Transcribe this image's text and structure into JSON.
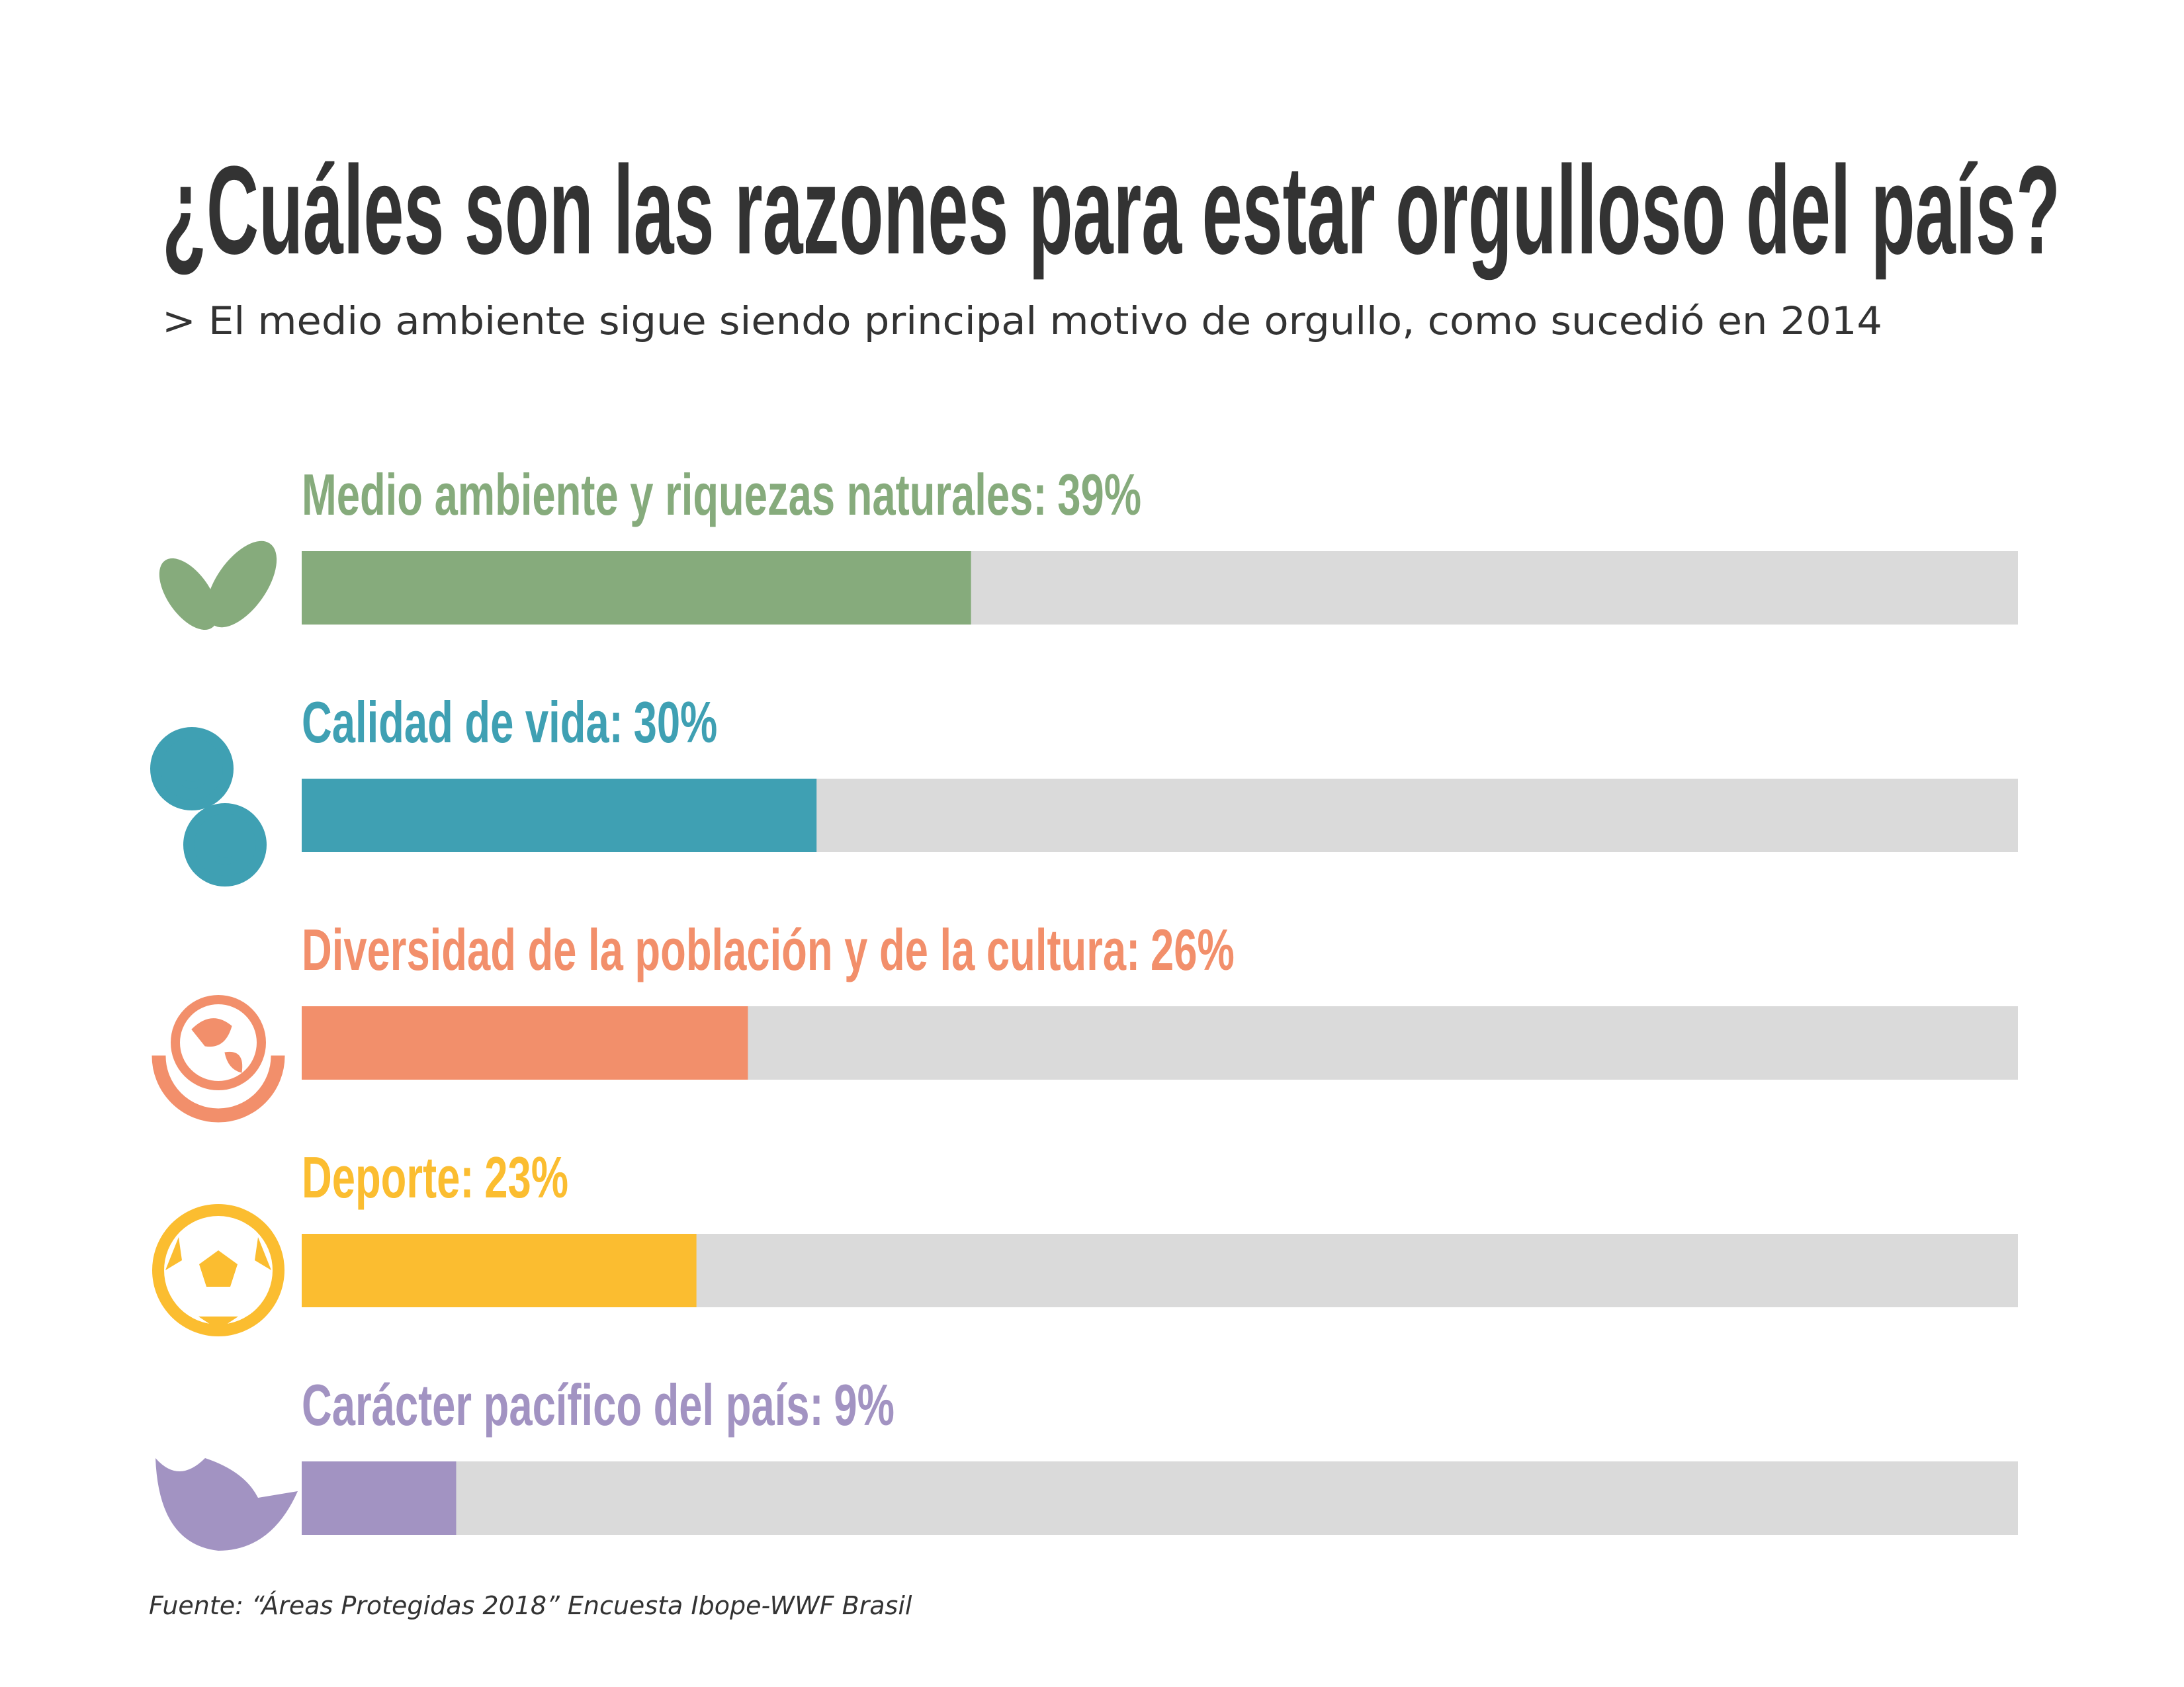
{
  "chart_data": {
    "type": "bar",
    "orientation": "horizontal",
    "title": "¿Cuáles son las razones para estar orgulloso del país?",
    "subtitle": "> El medio ambiente sigue siendo principal motivo de orgullo, como sucedió en 2014",
    "source": "Fuente: “Áreas Protegidas 2018” Encuesta Ibope-WWF Brasil",
    "categories": [
      "Medio ambiente y riquezas naturales:",
      "Calidad de vida:",
      "Diversidad de la población y de la cultura:",
      "Deporte:",
      "Carácter pacífico del país:"
    ],
    "values": [
      39,
      30,
      26,
      23,
      9
    ],
    "value_labels": [
      "39%",
      "30%",
      "26%",
      "23%",
      "9%"
    ],
    "colors": [
      "#86ab7c",
      "#3fa0b3",
      "#f28f6b",
      "#fbbd30",
      "#a293c2"
    ],
    "track_color": "#dadada",
    "xlim": [
      0,
      100
    ]
  }
}
